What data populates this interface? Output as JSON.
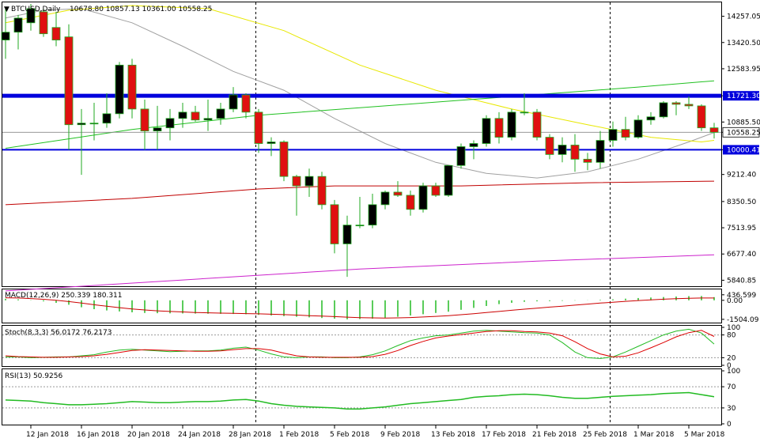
{
  "header": {
    "symbol": "BTCUSD,Daily",
    "ohlc": "10678.80 10857.13 10361.00 10558.25"
  },
  "colors": {
    "bull": "#000000",
    "bear": "#e01010",
    "hline": "#0000dd",
    "ma_gray": "#a0a0a0",
    "ma_yellow": "#e8e800",
    "ma_green": "#20c020",
    "ma_red": "#c00000",
    "ma_magenta": "#cc22cc",
    "macd_hist": "#22bb22",
    "macd_signal": "#cc0000",
    "stoch_main": "#22bb22",
    "stoch_signal": "#dd0000",
    "rsi": "#22bb22"
  },
  "chart_data": {
    "type": "candlestick",
    "price_axis": {
      "ylim": [
        5700,
        14650
      ],
      "ticks": [
        "14257.05",
        "13420.50",
        "12583.95",
        "11721.30",
        "10885.50",
        "10558.25",
        "10000.41",
        "9212.40",
        "8350.50",
        "7513.95",
        "6677.40",
        "5840.85"
      ],
      "tick_values": [
        14257.05,
        13420.5,
        12583.95,
        11721.3,
        10885.5,
        10558.25,
        10000.41,
        9212.4,
        8350.5,
        7513.95,
        6677.4,
        5840.85
      ]
    },
    "dates": [
      "12 Jan 2018",
      "16 Jan 2018",
      "20 Jan 2018",
      "24 Jan 2018",
      "28 Jan 2018",
      "1 Feb 2018",
      "5 Feb 2018",
      "9 Feb 2018",
      "13 Feb 2018",
      "17 Feb 2018",
      "21 Feb 2018",
      "25 Feb 2018",
      "1 Mar 2018",
      "5 Mar 2018"
    ],
    "date_values": [
      "2018-01-12",
      "2018-01-16",
      "2018-01-20",
      "2018-01-24",
      "2018-01-28",
      "2018-02-01",
      "2018-02-05",
      "2018-02-09",
      "2018-02-13",
      "2018-02-17",
      "2018-02-21",
      "2018-02-25",
      "2018-03-01",
      "2018-03-05"
    ],
    "candles": [
      {
        "date": "2018-01-10",
        "o": 13500,
        "h": 14500,
        "l": 12900,
        "c": 13750
      },
      {
        "date": "2018-01-11",
        "o": 13750,
        "h": 14300,
        "l": 13200,
        "c": 14200
      },
      {
        "date": "2018-01-12",
        "o": 14050,
        "h": 14650,
        "l": 13800,
        "c": 14500
      },
      {
        "date": "2018-01-13",
        "o": 14400,
        "h": 14500,
        "l": 13600,
        "c": 13700
      },
      {
        "date": "2018-01-14",
        "o": 13900,
        "h": 14400,
        "l": 13300,
        "c": 13500
      },
      {
        "date": "2018-01-15",
        "o": 13600,
        "h": 14000,
        "l": 10000,
        "c": 10800
      },
      {
        "date": "2018-01-16",
        "o": 10800,
        "h": 11300,
        "l": 9200,
        "c": 10850
      },
      {
        "date": "2018-01-17",
        "o": 10850,
        "h": 11500,
        "l": 10300,
        "c": 10850
      },
      {
        "date": "2018-01-18",
        "o": 10850,
        "h": 11800,
        "l": 10700,
        "c": 11150
      },
      {
        "date": "2018-01-19",
        "o": 11150,
        "h": 12800,
        "l": 11000,
        "c": 12700
      },
      {
        "date": "2018-01-20",
        "o": 12700,
        "h": 12900,
        "l": 11000,
        "c": 11300
      },
      {
        "date": "2018-01-21",
        "o": 11300,
        "h": 11600,
        "l": 10000,
        "c": 10600
      },
      {
        "date": "2018-01-22",
        "o": 10600,
        "h": 11400,
        "l": 10000,
        "c": 10700
      },
      {
        "date": "2018-01-23",
        "o": 10700,
        "h": 11300,
        "l": 10300,
        "c": 11000
      },
      {
        "date": "2018-01-24",
        "o": 11000,
        "h": 11500,
        "l": 10700,
        "c": 11200
      },
      {
        "date": "2018-01-25",
        "o": 11200,
        "h": 11400,
        "l": 10900,
        "c": 10950
      },
      {
        "date": "2018-01-26",
        "o": 10950,
        "h": 11600,
        "l": 10600,
        "c": 11000
      },
      {
        "date": "2018-01-27",
        "o": 11000,
        "h": 11500,
        "l": 10800,
        "c": 11300
      },
      {
        "date": "2018-01-28",
        "o": 11300,
        "h": 12000,
        "l": 11200,
        "c": 11750
      },
      {
        "date": "2018-01-29",
        "o": 11750,
        "h": 11800,
        "l": 11000,
        "c": 11200
      },
      {
        "date": "2018-01-30",
        "o": 11200,
        "h": 11300,
        "l": 9900,
        "c": 10200
      },
      {
        "date": "2018-01-31",
        "o": 10200,
        "h": 10400,
        "l": 9800,
        "c": 10250
      },
      {
        "date": "2018-02-01",
        "o": 10250,
        "h": 10300,
        "l": 9000,
        "c": 9150
      },
      {
        "date": "2018-02-02",
        "o": 9150,
        "h": 9200,
        "l": 7900,
        "c": 8850
      },
      {
        "date": "2018-02-03",
        "o": 8850,
        "h": 9400,
        "l": 8500,
        "c": 9150
      },
      {
        "date": "2018-02-04",
        "o": 9150,
        "h": 9300,
        "l": 8100,
        "c": 8250
      },
      {
        "date": "2018-02-05",
        "o": 8250,
        "h": 8400,
        "l": 6700,
        "c": 7000
      },
      {
        "date": "2018-02-06",
        "o": 7000,
        "h": 7900,
        "l": 5950,
        "c": 7600
      },
      {
        "date": "2018-02-07",
        "o": 7600,
        "h": 8500,
        "l": 7500,
        "c": 7600
      },
      {
        "date": "2018-02-08",
        "o": 7600,
        "h": 8600,
        "l": 7500,
        "c": 8250
      },
      {
        "date": "2018-02-09",
        "o": 8250,
        "h": 8700,
        "l": 8100,
        "c": 8650
      },
      {
        "date": "2018-02-10",
        "o": 8650,
        "h": 9000,
        "l": 8500,
        "c": 8550
      },
      {
        "date": "2018-02-11",
        "o": 8550,
        "h": 8700,
        "l": 7900,
        "c": 8100
      },
      {
        "date": "2018-02-12",
        "o": 8100,
        "h": 8950,
        "l": 8000,
        "c": 8850
      },
      {
        "date": "2018-02-13",
        "o": 8850,
        "h": 8950,
        "l": 8500,
        "c": 8550
      },
      {
        "date": "2018-02-14",
        "o": 8550,
        "h": 9500,
        "l": 8500,
        "c": 9500
      },
      {
        "date": "2018-02-15",
        "o": 9500,
        "h": 10200,
        "l": 9400,
        "c": 10100
      },
      {
        "date": "2018-02-16",
        "o": 10100,
        "h": 10300,
        "l": 9700,
        "c": 10200
      },
      {
        "date": "2018-02-17",
        "o": 10200,
        "h": 11100,
        "l": 10100,
        "c": 11000
      },
      {
        "date": "2018-02-18",
        "o": 11000,
        "h": 11200,
        "l": 10200,
        "c": 10400
      },
      {
        "date": "2018-02-19",
        "o": 10400,
        "h": 11300,
        "l": 10300,
        "c": 11200
      },
      {
        "date": "2018-02-20",
        "o": 11200,
        "h": 11800,
        "l": 11100,
        "c": 11200
      },
      {
        "date": "2018-02-21",
        "o": 11200,
        "h": 11300,
        "l": 10300,
        "c": 10400
      },
      {
        "date": "2018-02-22",
        "o": 10400,
        "h": 10500,
        "l": 9700,
        "c": 9850
      },
      {
        "date": "2018-02-23",
        "o": 9850,
        "h": 10400,
        "l": 9600,
        "c": 10150
      },
      {
        "date": "2018-02-24",
        "o": 10150,
        "h": 10500,
        "l": 9300,
        "c": 9700
      },
      {
        "date": "2018-02-25",
        "o": 9700,
        "h": 9900,
        "l": 9350,
        "c": 9600
      },
      {
        "date": "2018-02-26",
        "o": 9600,
        "h": 10600,
        "l": 9400,
        "c": 10300
      },
      {
        "date": "2018-02-27",
        "o": 10300,
        "h": 10900,
        "l": 10100,
        "c": 10650
      },
      {
        "date": "2018-02-28",
        "o": 10650,
        "h": 11050,
        "l": 10300,
        "c": 10400
      },
      {
        "date": "2018-03-01",
        "o": 10400,
        "h": 11100,
        "l": 10350,
        "c": 10950
      },
      {
        "date": "2018-03-02",
        "o": 10950,
        "h": 11200,
        "l": 10800,
        "c": 11050
      },
      {
        "date": "2018-03-03",
        "o": 11050,
        "h": 11550,
        "l": 11000,
        "c": 11500
      },
      {
        "date": "2018-03-04",
        "o": 11500,
        "h": 11550,
        "l": 11100,
        "c": 11450
      },
      {
        "date": "2018-03-05",
        "o": 11450,
        "h": 11700,
        "l": 11300,
        "c": 11400
      },
      {
        "date": "2018-03-06",
        "o": 11400,
        "h": 11450,
        "l": 10600,
        "c": 10700
      },
      {
        "date": "2018-03-07",
        "o": 10700,
        "h": 10860,
        "l": 10360,
        "c": 10558
      }
    ],
    "horizontal_lines": [
      {
        "value": 11721.3,
        "label": "11721.30",
        "thick": true
      },
      {
        "value": 10000.41,
        "label": "10000.41",
        "thick": false
      }
    ],
    "current_price": {
      "value": 10558.25,
      "label": "10558.25"
    },
    "moving_averages": [
      {
        "color_key": "ma_gray",
        "points": [
          [
            0,
            14200
          ],
          [
            3,
            14450
          ],
          [
            6,
            14500
          ],
          [
            10,
            14050
          ],
          [
            14,
            13300
          ],
          [
            18,
            12500
          ],
          [
            22,
            11900
          ],
          [
            26,
            11000
          ],
          [
            30,
            10200
          ],
          [
            34,
            9600
          ],
          [
            38,
            9250
          ],
          [
            42,
            9100
          ],
          [
            46,
            9300
          ],
          [
            50,
            9700
          ],
          [
            54,
            10250
          ],
          [
            56,
            10550
          ]
        ]
      },
      {
        "color_key": "ma_yellow",
        "points": [
          [
            0,
            14050
          ],
          [
            5,
            14450
          ],
          [
            10,
            14600
          ],
          [
            16,
            14500
          ],
          [
            22,
            13800
          ],
          [
            28,
            12700
          ],
          [
            34,
            11900
          ],
          [
            40,
            11300
          ],
          [
            46,
            10800
          ],
          [
            51,
            10400
          ],
          [
            55,
            10250
          ],
          [
            56,
            10300
          ]
        ]
      },
      {
        "color_key": "ma_green",
        "points": [
          [
            0,
            10050
          ],
          [
            10,
            10650
          ],
          [
            20,
            11100
          ],
          [
            30,
            11400
          ],
          [
            40,
            11700
          ],
          [
            50,
            12000
          ],
          [
            56,
            12200
          ]
        ]
      },
      {
        "color_key": "ma_red",
        "points": [
          [
            0,
            8250
          ],
          [
            10,
            8450
          ],
          [
            20,
            8750
          ],
          [
            26,
            8850
          ],
          [
            36,
            8850
          ],
          [
            46,
            8950
          ],
          [
            56,
            9000
          ]
        ]
      },
      {
        "color_key": "ma_magenta",
        "points": [
          [
            0,
            5500
          ],
          [
            14,
            5850
          ],
          [
            28,
            6200
          ],
          [
            42,
            6450
          ],
          [
            56,
            6650
          ]
        ]
      }
    ],
    "macd": {
      "label": "MACD(12,26,9) 250.339 180.311",
      "ylim": [
        -1700,
        800
      ],
      "ticks": [
        "436.599",
        "0.00",
        "-1504.09"
      ],
      "tick_values": [
        436.599,
        0,
        -1504.09
      ],
      "histogram": [
        120,
        80,
        20,
        -80,
        -200,
        -350,
        -550,
        -700,
        -800,
        -880,
        -950,
        -1000,
        -1020,
        -1030,
        -1040,
        -1050,
        -1060,
        -1070,
        -1080,
        -1100,
        -1150,
        -1200,
        -1250,
        -1300,
        -1350,
        -1400,
        -1450,
        -1504,
        -1480,
        -1450,
        -1380,
        -1300,
        -1200,
        -1100,
        -1000,
        -900,
        -750,
        -600,
        -450,
        -300,
        -200,
        -120,
        -80,
        -60,
        -40,
        -20,
        10,
        40,
        80,
        130,
        180,
        220,
        260,
        300,
        330,
        340,
        250
      ],
      "signal": [
        200,
        180,
        140,
        80,
        0,
        -100,
        -220,
        -350,
        -470,
        -580,
        -680,
        -760,
        -830,
        -880,
        -920,
        -960,
        -990,
        -1010,
        -1030,
        -1050,
        -1070,
        -1100,
        -1130,
        -1170,
        -1210,
        -1250,
        -1290,
        -1330,
        -1370,
        -1390,
        -1400,
        -1390,
        -1360,
        -1320,
        -1270,
        -1210,
        -1140,
        -1060,
        -970,
        -880,
        -790,
        -700,
        -620,
        -540,
        -460,
        -380,
        -300,
        -220,
        -150,
        -80,
        -20,
        40,
        90,
        130,
        160,
        180,
        180
      ]
    },
    "stoch": {
      "label": "Stoch(8,3,3) 56.0172 76.2173",
      "ylim": [
        0,
        100
      ],
      "ticks": [
        "100",
        "80",
        "20",
        "0"
      ],
      "tick_values": [
        100,
        80,
        20,
        0
      ],
      "main": [
        22,
        22,
        20,
        21,
        22,
        22,
        25,
        28,
        35,
        40,
        42,
        40,
        38,
        36,
        37,
        38,
        38,
        40,
        45,
        48,
        40,
        30,
        22,
        20,
        22,
        22,
        20,
        20,
        22,
        28,
        38,
        52,
        65,
        72,
        78,
        80,
        85,
        90,
        92,
        90,
        88,
        86,
        85,
        80,
        60,
        35,
        20,
        18,
        22,
        35,
        50,
        65,
        80,
        90,
        95,
        85,
        56
      ],
      "signal": [
        25,
        23,
        22,
        21,
        21,
        22,
        23,
        25,
        29,
        34,
        39,
        41,
        40,
        39,
        38,
        37,
        37,
        38,
        41,
        44,
        44,
        40,
        32,
        25,
        22,
        21,
        21,
        21,
        21,
        23,
        29,
        39,
        52,
        63,
        72,
        77,
        81,
        85,
        89,
        91,
        91,
        89,
        88,
        85,
        78,
        62,
        44,
        30,
        22,
        24,
        33,
        46,
        60,
        75,
        86,
        92,
        76
      ]
    },
    "rsi": {
      "label": "RSI(13) 50.9256",
      "ylim": [
        0,
        100
      ],
      "ticks": [
        "100",
        "70",
        "30",
        "0"
      ],
      "tick_values": [
        100,
        70,
        30,
        0
      ],
      "values": [
        45,
        44,
        43,
        40,
        38,
        36,
        36,
        37,
        38,
        40,
        42,
        41,
        40,
        40,
        41,
        42,
        42,
        43,
        45,
        46,
        43,
        38,
        35,
        33,
        32,
        31,
        30,
        28,
        28,
        30,
        32,
        35,
        38,
        40,
        42,
        44,
        46,
        50,
        52,
        53,
        55,
        56,
        55,
        53,
        50,
        48,
        48,
        50,
        52,
        53,
        54,
        55,
        57,
        58,
        59,
        55,
        51
      ]
    }
  }
}
